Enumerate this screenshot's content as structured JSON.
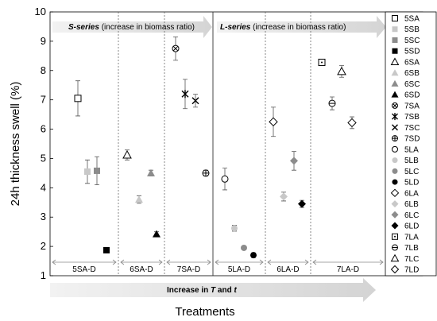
{
  "chart_data": {
    "type": "scatter",
    "ylabel": "24h thickness swell (%)",
    "xlabel": "Treatments",
    "ylim": [
      1,
      10
    ],
    "yticks": [
      1,
      2,
      3,
      4,
      5,
      6,
      7,
      8,
      9,
      10
    ],
    "legend_placement": "right",
    "band_top_left": {
      "bold": "S-series",
      "rest": " (increase in biomass ratio)"
    },
    "band_top_right": {
      "bold": "L-series",
      "rest": " (increase in biomass ratio)"
    },
    "band_bottom": {
      "text": "Increase in ",
      "T": "T",
      "and": " and ",
      "t": "t"
    },
    "groups": [
      "5SA-D",
      "6SA-D",
      "7SA-D",
      "5LA-D",
      "6LA-D",
      "7LA-D"
    ],
    "series": [
      {
        "name": "5SA",
        "marker": "square-open",
        "color": "#000000",
        "y": 7.05,
        "err": 0.6
      },
      {
        "name": "5SB",
        "marker": "square",
        "color": "#c8c8c8",
        "y": 4.55,
        "err": 0.4
      },
      {
        "name": "5SC",
        "marker": "square",
        "color": "#8c8c8c",
        "y": 4.58,
        "err": 0.48
      },
      {
        "name": "5SD",
        "marker": "square",
        "color": "#000000",
        "y": 1.87,
        "err": 0
      },
      {
        "name": "6SA",
        "marker": "triangle-open",
        "color": "#000000",
        "y": 5.12,
        "err": 0.17
      },
      {
        "name": "6SB",
        "marker": "triangle",
        "color": "#c8c8c8",
        "y": 3.6,
        "err": 0.13
      },
      {
        "name": "6SC",
        "marker": "triangle",
        "color": "#8c8c8c",
        "y": 4.5,
        "err": 0.1
      },
      {
        "name": "6SD",
        "marker": "triangle",
        "color": "#000000",
        "y": 2.42,
        "err": 0.08
      },
      {
        "name": "7SA",
        "marker": "circle-x",
        "color": "#000000",
        "y": 8.75,
        "err": 0.4
      },
      {
        "name": "7SB",
        "marker": "asterisk",
        "color": "#000000",
        "y": 7.2,
        "err": 0.5
      },
      {
        "name": "7SC",
        "marker": "x",
        "color": "#000000",
        "y": 6.97,
        "err": 0.22
      },
      {
        "name": "7SD",
        "marker": "circle-plus",
        "color": "#000000",
        "y": 4.5,
        "err": 0.1
      },
      {
        "name": "5LA",
        "marker": "circle-open",
        "color": "#000000",
        "y": 4.3,
        "err": 0.37
      },
      {
        "name": "5LB",
        "marker": "circle",
        "color": "#c8c8c8",
        "y": 2.62,
        "err": 0.1
      },
      {
        "name": "5LC",
        "marker": "circle",
        "color": "#8c8c8c",
        "y": 1.95,
        "err": 0
      },
      {
        "name": "5LD",
        "marker": "circle",
        "color": "#000000",
        "y": 1.7,
        "err": 0.08
      },
      {
        "name": "6LA",
        "marker": "diamond-open",
        "color": "#000000",
        "y": 6.25,
        "err": 0.5
      },
      {
        "name": "6LB",
        "marker": "diamond",
        "color": "#c8c8c8",
        "y": 3.7,
        "err": 0.15
      },
      {
        "name": "6LC",
        "marker": "diamond",
        "color": "#8c8c8c",
        "y": 4.92,
        "err": 0.32
      },
      {
        "name": "6LD",
        "marker": "diamond",
        "color": "#000000",
        "y": 3.45,
        "err": 0.12
      },
      {
        "name": "7LA",
        "marker": "square-dot",
        "color": "#000000",
        "y": 8.28,
        "err": 0
      },
      {
        "name": "7LB",
        "marker": "circle-bar",
        "color": "#000000",
        "y": 6.88,
        "err": 0.22
      },
      {
        "name": "7LC",
        "marker": "triangle-open",
        "color": "#000000",
        "y": 7.97,
        "err": 0.2
      },
      {
        "name": "7LD",
        "marker": "diamond-open",
        "color": "#000000",
        "y": 6.22,
        "err": 0.2
      }
    ]
  }
}
